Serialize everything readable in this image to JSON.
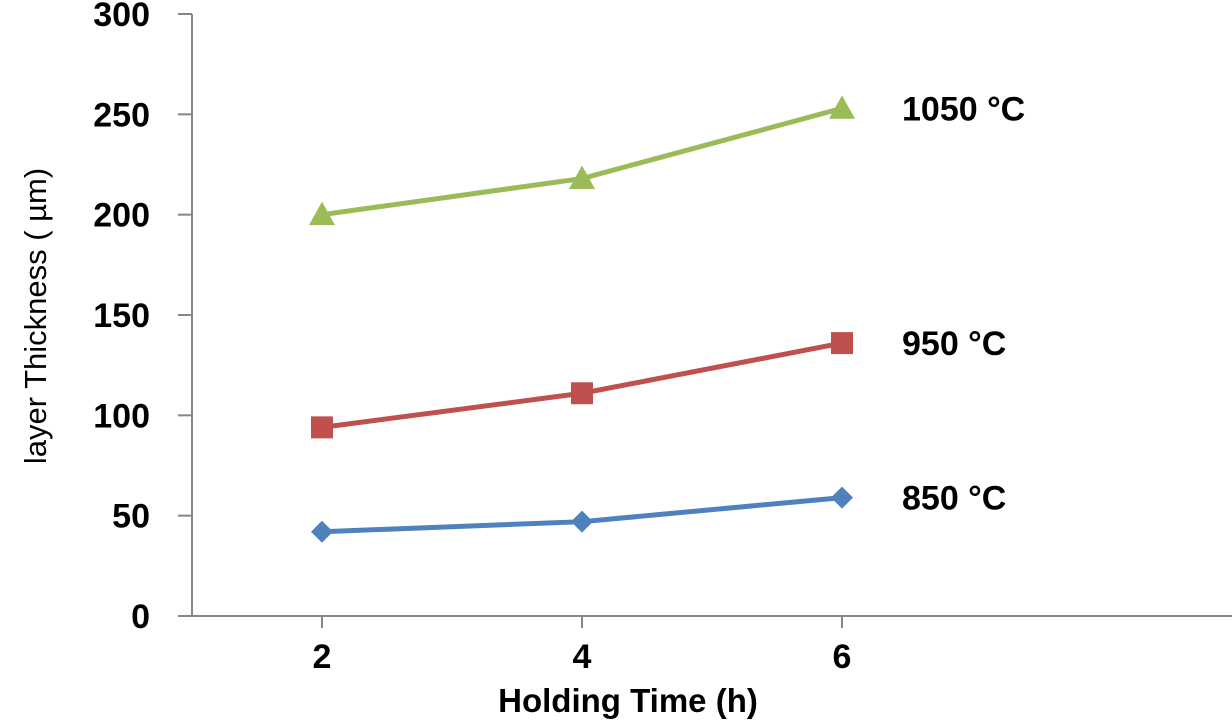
{
  "chart_data": {
    "type": "line",
    "title": "",
    "xlabel": "Holding Time (h)",
    "ylabel": "layer Thickness ( µm)",
    "x": [
      2,
      4,
      6
    ],
    "x_ticks": [
      "2",
      "4",
      "6"
    ],
    "xlim": [
      1,
      9
    ],
    "ylim": [
      0,
      300
    ],
    "y_ticks": [
      "0",
      "50",
      "100",
      "150",
      "200",
      "250",
      "300"
    ],
    "grid": false,
    "legend": "inline labels at line ends",
    "series": [
      {
        "name": "850 °C",
        "values": [
          42,
          47,
          59
        ],
        "color": "#4F81BD",
        "marker": "diamond"
      },
      {
        "name": "950 °C",
        "values": [
          94,
          111,
          136
        ],
        "color": "#C0504D",
        "marker": "square"
      },
      {
        "name": "1050 °C",
        "values": [
          200,
          218,
          253
        ],
        "color": "#9BBB59",
        "marker": "triangle"
      }
    ]
  }
}
